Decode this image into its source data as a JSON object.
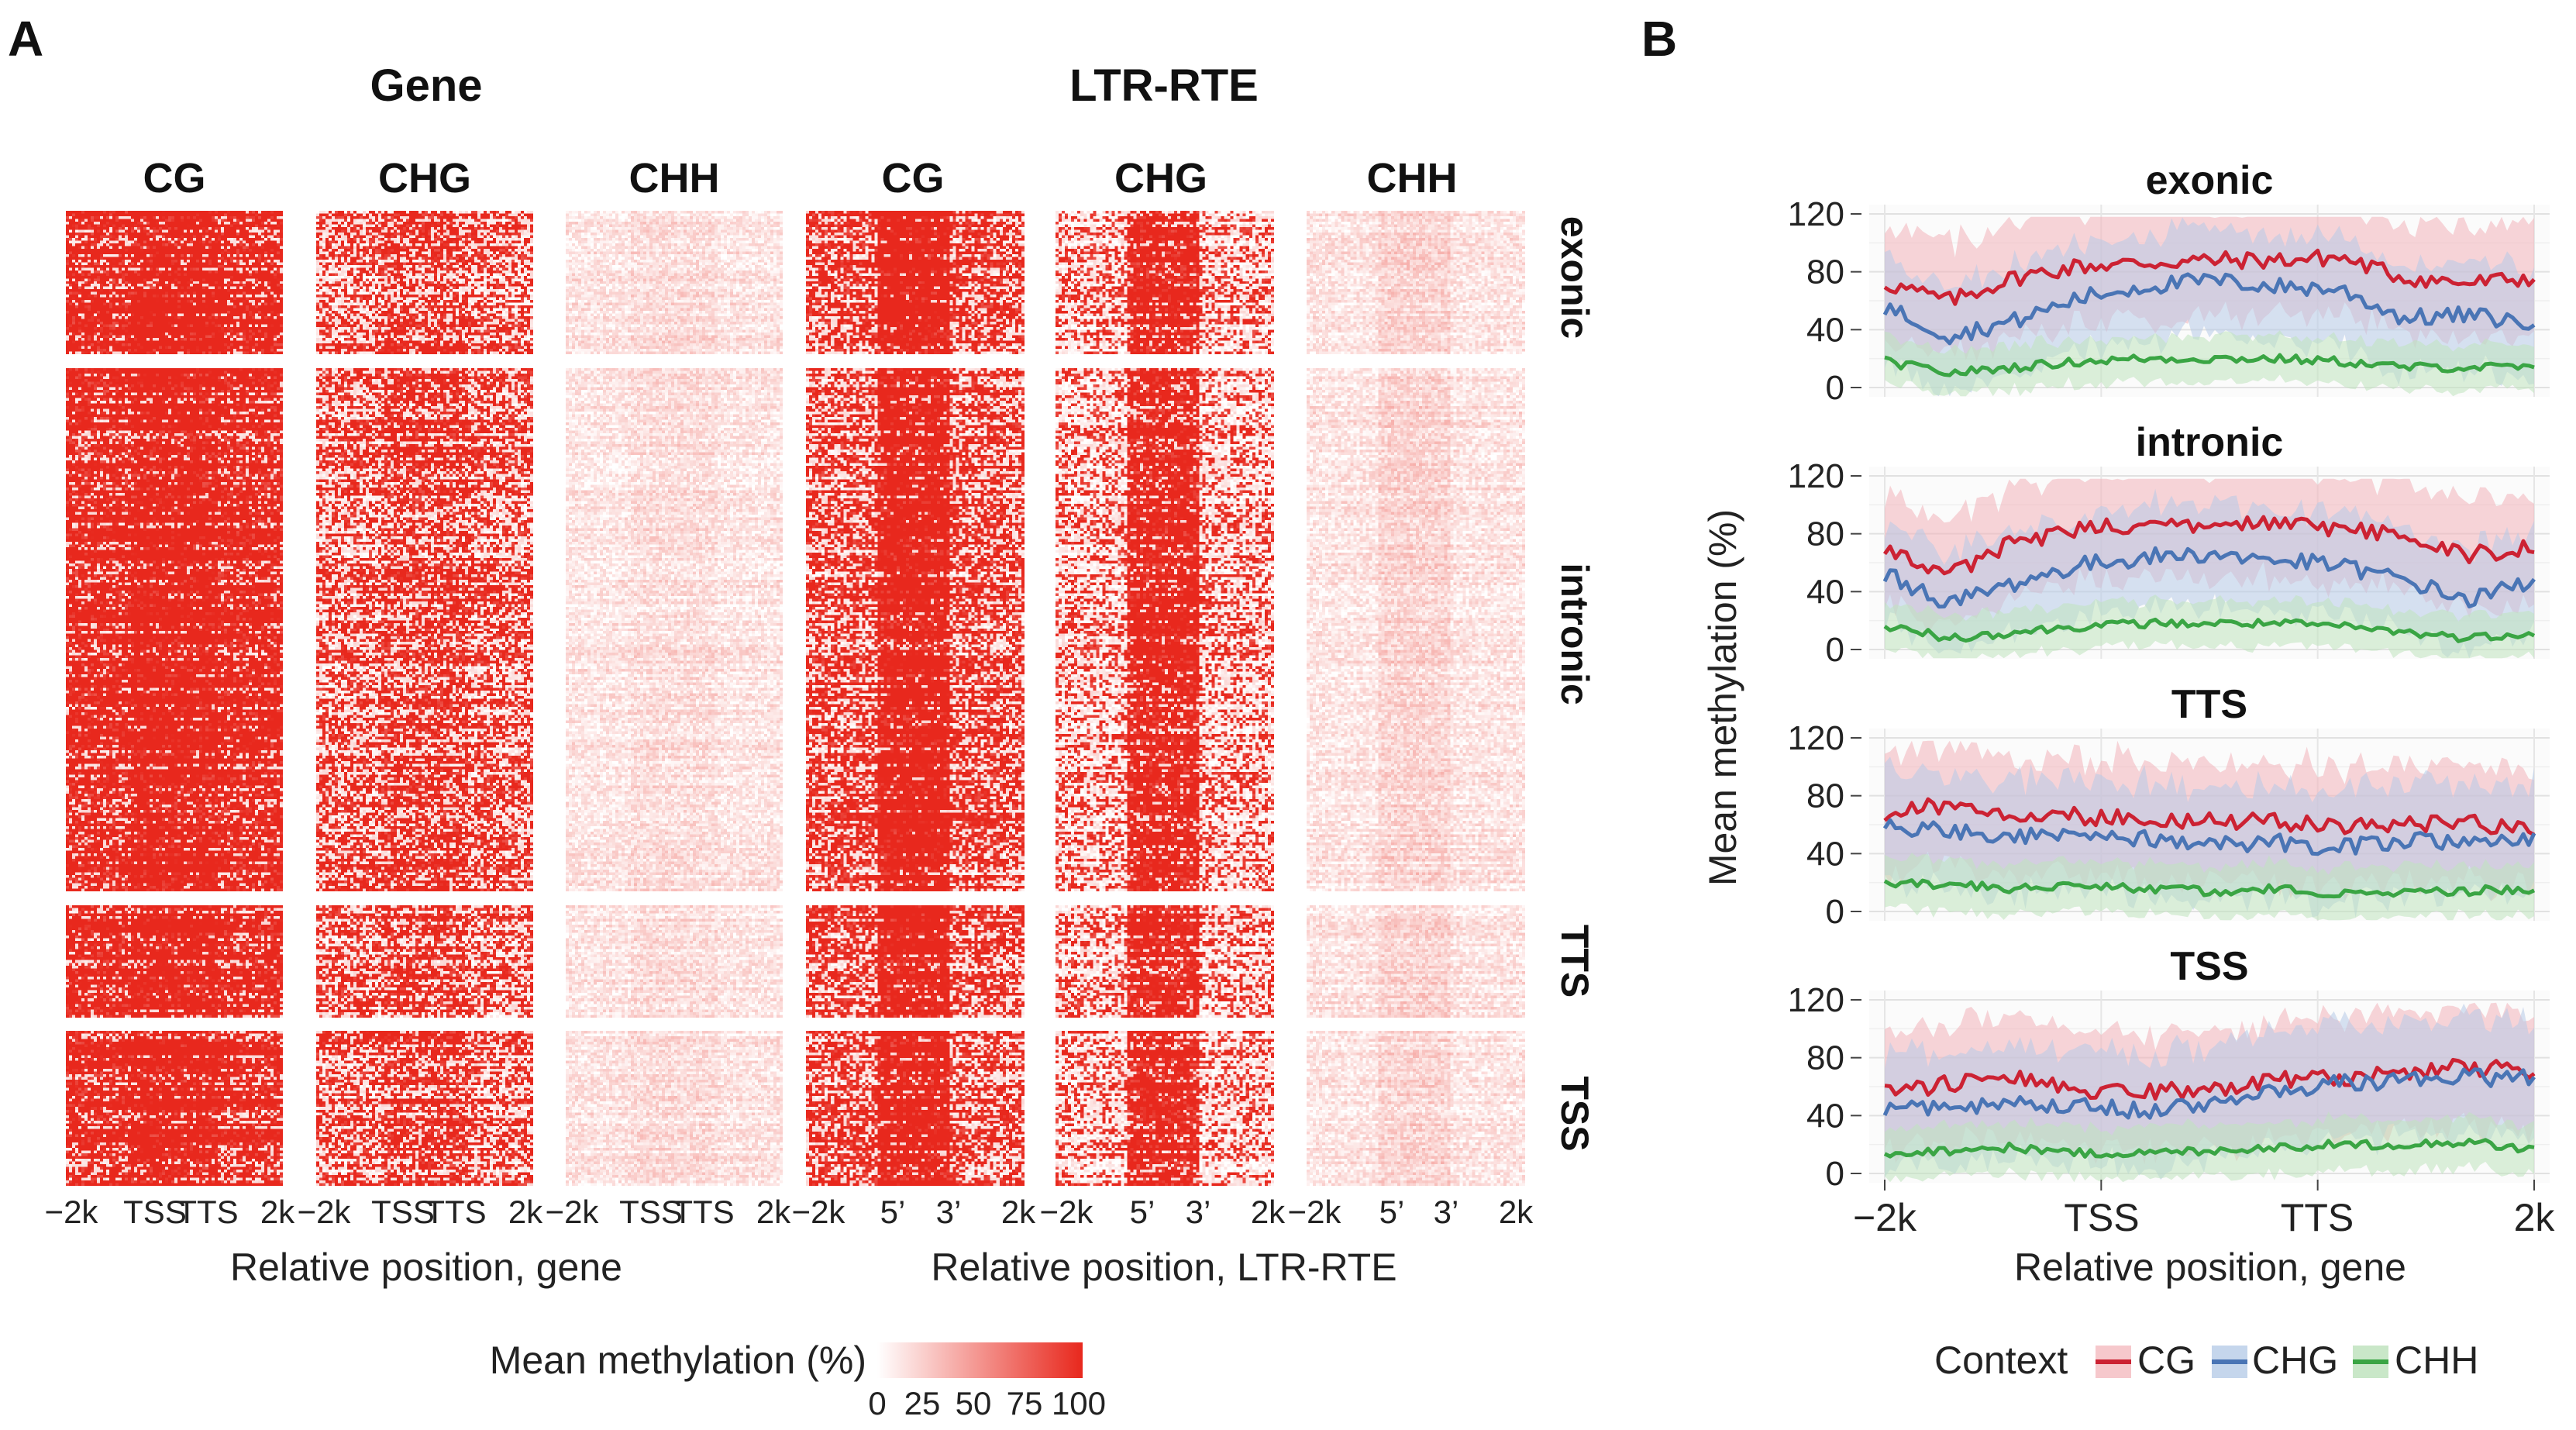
{
  "chart_data": [
    {
      "type": "heatmap",
      "panel": "A",
      "groups": [
        {
          "title": "Gene",
          "columns": [
            "CG",
            "CHG",
            "CHH"
          ],
          "ticks": [
            "−2k",
            "TSS",
            "TTS",
            "2k"
          ],
          "xlabel": "Relative position, gene"
        },
        {
          "title": "LTR-RTE",
          "columns": [
            "CG",
            "CHG",
            "CHH"
          ],
          "ticks": [
            "−2k",
            "5’",
            "3’",
            "2k"
          ],
          "xlabel": "Relative position, LTR-RTE"
        }
      ],
      "rows": [
        "exonic",
        "intronic",
        "TTS",
        "TSS"
      ],
      "approx_mean_methylation": {
        "gene": {
          "CG": 80,
          "CHG": 55,
          "CHH": 12
        },
        "ltr_rte_body": {
          "CG": 95,
          "CHG": 85,
          "CHH": 20
        },
        "ltr_rte_flank": {
          "CG": 60,
          "CHG": 40,
          "CHH": 12
        }
      },
      "colorbar": {
        "label": "Mean methylation (%)",
        "ticks": [
          "0",
          "25",
          "50",
          "75",
          "100"
        ],
        "low": "#ffffff",
        "high": "#e8281d"
      }
    },
    {
      "type": "line",
      "panel": "B",
      "ylabel": "Mean methylation (%)",
      "xlabel": "Relative position, gene",
      "x_ticks": [
        "−2k",
        "TSS",
        "TTS",
        "2k"
      ],
      "y_ticks": [
        "0",
        "40",
        "80",
        "120"
      ],
      "ylim": [
        0,
        120
      ],
      "legend": {
        "title": "Context",
        "items": [
          "CG",
          "CHG",
          "CHH"
        ]
      },
      "colors": {
        "CG": "#cc2233",
        "CHG": "#4a75b5",
        "CHH": "#3aa544"
      },
      "x": [
        0,
        10,
        20,
        30,
        40,
        50,
        60,
        70,
        80,
        90,
        100
      ],
      "panels": [
        {
          "title": "exonic",
          "series": [
            {
              "name": "CG",
              "values": [
                72,
                60,
                76,
                84,
                86,
                88,
                88,
                90,
                76,
                72,
                76
              ],
              "band": 40
            },
            {
              "name": "CHG",
              "values": [
                56,
                36,
                46,
                62,
                70,
                74,
                70,
                68,
                48,
                50,
                44
              ],
              "band": 38
            },
            {
              "name": "CHH",
              "values": [
                18,
                10,
                14,
                18,
                20,
                20,
                20,
                18,
                14,
                14,
                14
              ],
              "band": 16
            }
          ]
        },
        {
          "title": "intronic",
          "series": [
            {
              "name": "CG",
              "values": [
                70,
                52,
                74,
                84,
                86,
                86,
                86,
                84,
                78,
                66,
                70
              ],
              "band": 38
            },
            {
              "name": "CHG",
              "values": [
                52,
                32,
                46,
                58,
                64,
                66,
                62,
                58,
                48,
                34,
                48
              ],
              "band": 36
            },
            {
              "name": "CHH",
              "values": [
                16,
                8,
                12,
                16,
                18,
                18,
                18,
                16,
                12,
                8,
                12
              ],
              "band": 16
            }
          ]
        },
        {
          "title": "TTS",
          "series": [
            {
              "name": "CG",
              "values": [
                68,
                74,
                68,
                66,
                64,
                62,
                62,
                58,
                60,
                62,
                56
              ],
              "band": 42
            },
            {
              "name": "CHG",
              "values": [
                58,
                56,
                52,
                54,
                50,
                46,
                48,
                44,
                50,
                46,
                50
              ],
              "band": 40
            },
            {
              "name": "CHH",
              "values": [
                20,
                18,
                16,
                18,
                16,
                14,
                16,
                12,
                14,
                14,
                16
              ],
              "band": 18
            }
          ]
        },
        {
          "title": "TSS",
          "series": [
            {
              "name": "CG",
              "values": [
                55,
                62,
                66,
                58,
                56,
                58,
                64,
                66,
                70,
                74,
                70
              ],
              "band": 42
            },
            {
              "name": "CHG",
              "values": [
                44,
                46,
                50,
                46,
                44,
                48,
                56,
                62,
                64,
                66,
                66
              ],
              "band": 40
            },
            {
              "name": "CHH",
              "values": [
                14,
                16,
                18,
                14,
                14,
                16,
                18,
                20,
                20,
                22,
                16
              ],
              "band": 18
            }
          ]
        }
      ]
    }
  ]
}
